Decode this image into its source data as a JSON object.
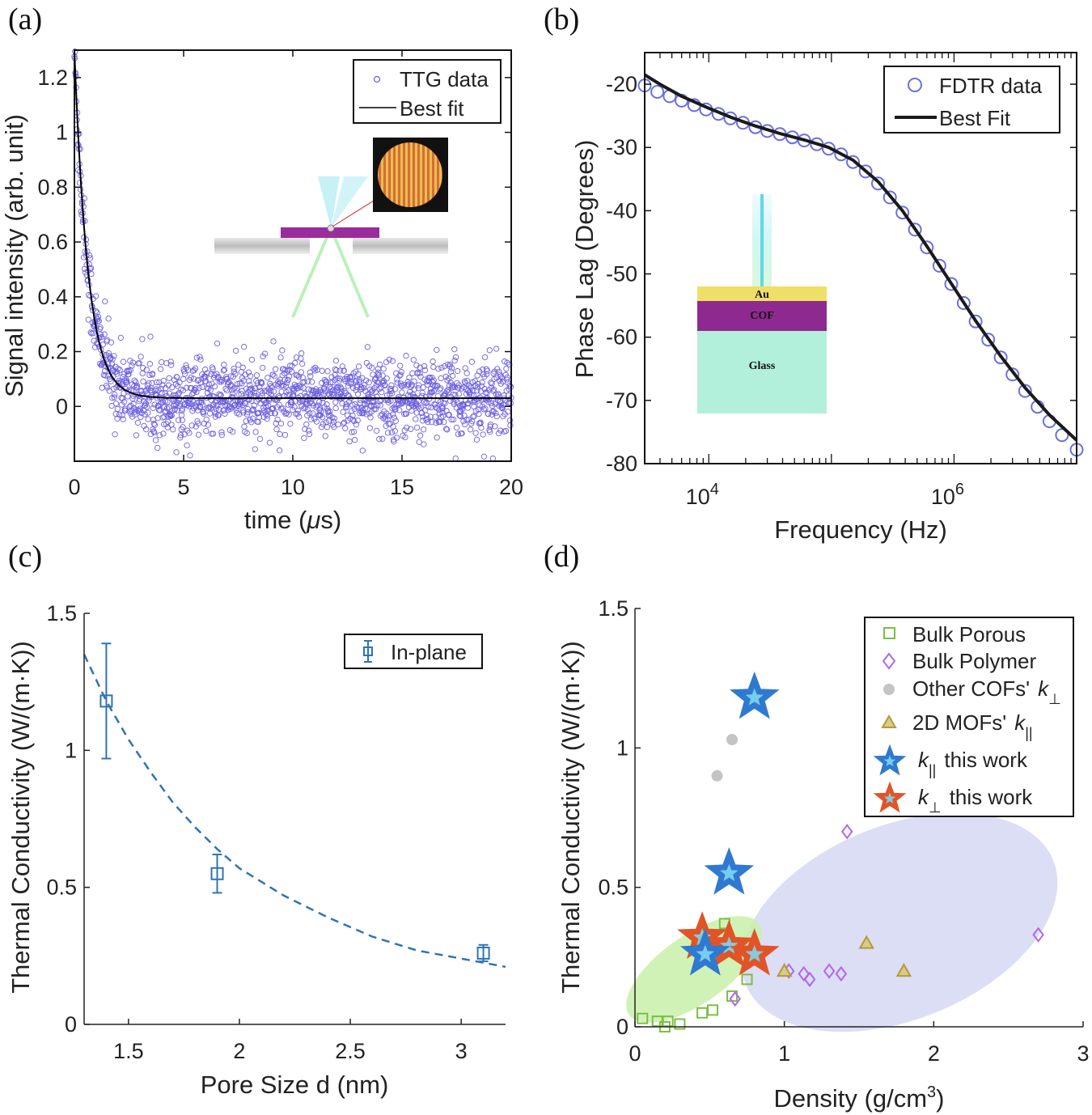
{
  "panels": {
    "a": {
      "label": "(a)"
    },
    "b": {
      "label": "(b)"
    },
    "c": {
      "label": "(c)"
    },
    "d": {
      "label": "(d)"
    }
  },
  "chart_data": [
    {
      "id": "a",
      "type": "scatter",
      "xlabel_pre": "time (",
      "xlabel_mu": "μ",
      "xlabel_post": "s)",
      "ylabel": "Signal intensity (arb. unit)",
      "xlim": [
        0,
        20
      ],
      "ylim": [
        -0.2,
        1.3
      ],
      "xticks": [
        0,
        5,
        10,
        15,
        20
      ],
      "yticks": [
        0,
        0.2,
        0.4,
        0.6,
        0.8,
        1,
        1.2
      ],
      "xtick_labels": [
        "0",
        "5",
        "10",
        "15",
        "20"
      ],
      "ytick_labels": [
        "0",
        "0.2",
        "0.4",
        "0.6",
        "0.8",
        "1",
        "1.2"
      ],
      "series": [
        {
          "name": "TTG data",
          "kind": "points",
          "color": "#6a5fe0",
          "model": {
            "A": 1.27,
            "tau": 0.62,
            "C": 0.03,
            "noise": 0.07,
            "n": 1500
          }
        },
        {
          "name": "Best fit",
          "kind": "line",
          "color": "#000000",
          "model": {
            "A": 1.27,
            "tau": 0.62,
            "C": 0.03
          }
        }
      ],
      "legend_position": "top-right",
      "inset": {
        "description": "transient grating setup"
      }
    },
    {
      "id": "b",
      "type": "scatter",
      "xscale": "log",
      "xlabel": "Frequency (Hz)",
      "ylabel": "Phase Lag (Degrees)",
      "xlim": [
        3000,
        10000000
      ],
      "ylim": [
        -80,
        -15
      ],
      "yticks": [
        -80,
        -70,
        -60,
        -50,
        -40,
        -30,
        -20
      ],
      "ytick_labels": [
        "-80",
        "-70",
        "-60",
        "-50",
        "-40",
        "-30",
        "-20"
      ],
      "xticks_major": [
        10000,
        1000000
      ],
      "xtick_labels": [
        {
          "base": "10",
          "exp": "4"
        },
        {
          "base": "10",
          "exp": "6"
        }
      ],
      "series": [
        {
          "name": "FDTR data",
          "kind": "points",
          "color": "#6a70e0",
          "x": [
            3000,
            3800,
            4800,
            6000,
            7600,
            9500,
            12000,
            15000,
            19000,
            24000,
            30000,
            38000,
            48000,
            60000,
            76000,
            95000,
            120000,
            150000,
            190000,
            240000,
            300000,
            380000,
            480000,
            600000,
            760000,
            950000,
            1200000,
            1500000,
            1900000,
            2400000,
            3000000,
            3800000,
            4800000,
            6000000,
            7600000,
            10000000
          ],
          "y": [
            -20.2,
            -21.2,
            -21.9,
            -22.6,
            -23.3,
            -24.0,
            -24.7,
            -25.4,
            -26.1,
            -26.8,
            -27.4,
            -27.9,
            -28.4,
            -28.9,
            -29.5,
            -30.2,
            -31.1,
            -32.3,
            -33.8,
            -35.7,
            -37.9,
            -40.3,
            -43.0,
            -45.8,
            -48.7,
            -51.6,
            -54.6,
            -57.5,
            -60.4,
            -63.2,
            -65.9,
            -68.5,
            -71.0,
            -73.3,
            -75.5,
            -77.8
          ]
        },
        {
          "name": "Best Fit",
          "kind": "line",
          "color": "#1a1a1a",
          "x": [
            3000,
            4000,
            6000,
            10000,
            15000,
            24000,
            38000,
            60000,
            95000,
            150000,
            240000,
            380000,
            600000,
            950000,
            1500000,
            2400000,
            3800000,
            6000000,
            10000000
          ],
          "y": [
            -18.5,
            -20.0,
            -21.9,
            -23.8,
            -25.2,
            -26.6,
            -27.8,
            -28.8,
            -30.0,
            -32.0,
            -35.4,
            -40.0,
            -45.6,
            -51.5,
            -57.4,
            -63.0,
            -68.0,
            -72.3,
            -76.3
          ]
        }
      ],
      "legend_position": "top-right",
      "inset": {
        "layers": [
          "Au",
          "COF",
          "Glass"
        ]
      }
    },
    {
      "id": "c",
      "type": "scatter",
      "xlabel": "Pore Size d (nm)",
      "ylabel": "Thermal Conductivity (W/(m·K))",
      "xlim": [
        1.3,
        3.2
      ],
      "ylim": [
        0,
        1.5
      ],
      "xticks": [
        1.5,
        2,
        2.5,
        3
      ],
      "yticks": [
        0,
        0.5,
        1,
        1.5
      ],
      "xtick_labels": [
        "1.5",
        "2",
        "2.5",
        "3"
      ],
      "ytick_labels": [
        "0",
        "0.5",
        "1",
        "1.5"
      ],
      "series": [
        {
          "name": "In-plane",
          "kind": "errorbar",
          "color": "#2f73b4",
          "x": [
            1.4,
            1.9,
            3.1
          ],
          "y": [
            1.18,
            0.55,
            0.26
          ],
          "yerr_low": [
            0.21,
            0.07,
            0.03
          ],
          "yerr_high": [
            0.21,
            0.07,
            0.03
          ]
        },
        {
          "name": "fit",
          "kind": "dashed",
          "color": "#2f73b4",
          "x": [
            1.3,
            1.4,
            1.5,
            1.6,
            1.7,
            1.8,
            1.9,
            2.0,
            2.2,
            2.4,
            2.6,
            2.8,
            3.0,
            3.2
          ],
          "y": [
            1.35,
            1.18,
            1.04,
            0.92,
            0.81,
            0.72,
            0.64,
            0.57,
            0.47,
            0.39,
            0.32,
            0.27,
            0.24,
            0.21
          ]
        }
      ],
      "legend_position": "top-right"
    },
    {
      "id": "d",
      "type": "scatter",
      "xlabel_pre": "Density (g/cm",
      "xlabel_sup": "3",
      "xlabel_post": ")",
      "ylabel": "Thermal Conductivity (W/(m·K))",
      "xlim": [
        0,
        3
      ],
      "ylim": [
        0,
        1.5
      ],
      "xticks": [
        0,
        1,
        2,
        3
      ],
      "yticks": [
        0,
        0.5,
        1,
        1.5
      ],
      "xtick_labels": [
        "0",
        "1",
        "2",
        "3"
      ],
      "ytick_labels": [
        "0",
        "0.5",
        "1",
        "1.5"
      ],
      "series": [
        {
          "name": "Bulk Porous",
          "kind": "square",
          "color": "#7cbe45",
          "x": [
            0.05,
            0.15,
            0.2,
            0.22,
            0.3,
            0.45,
            0.52,
            0.6,
            0.65,
            0.75
          ],
          "y": [
            0.03,
            0.02,
            0.0,
            0.02,
            0.01,
            0.05,
            0.06,
            0.37,
            0.11,
            0.17
          ]
        },
        {
          "name": "Bulk Polymer",
          "kind": "diamond",
          "color": "#b266e8",
          "x": [
            0.67,
            1.03,
            1.13,
            1.17,
            1.3,
            1.38,
            1.42,
            2.7
          ],
          "y": [
            0.1,
            0.2,
            0.19,
            0.17,
            0.2,
            0.19,
            0.7,
            0.33
          ]
        },
        {
          "name": "Other COFs'",
          "sub": "⊥",
          "kind": "circle",
          "color": "#c4c4c4",
          "x": [
            0.55,
            0.65
          ],
          "y": [
            0.9,
            1.03
          ]
        },
        {
          "name": "2D MOFs'",
          "sub": "||",
          "kind": "triangle",
          "color": "#b39a3a",
          "x": [
            1.0,
            1.55,
            1.8
          ],
          "y": [
            0.2,
            0.3,
            0.2
          ]
        },
        {
          "name": "this work",
          "sub": "||",
          "kind": "star",
          "color": "#2f7ad0",
          "x": [
            0.8,
            0.63,
            0.47
          ],
          "y": [
            1.18,
            0.55,
            0.26
          ]
        },
        {
          "name": "this work",
          "sub": "⊥",
          "kind": "star",
          "color": "#e05427",
          "x": [
            0.45,
            0.63,
            0.8
          ],
          "y": [
            0.32,
            0.29,
            0.26
          ]
        }
      ],
      "legend_position": "top-right",
      "legend_k": "k",
      "shaded_regions": [
        {
          "color": "#c9f0a9"
        },
        {
          "color": "#d6d8f5"
        }
      ]
    }
  ]
}
